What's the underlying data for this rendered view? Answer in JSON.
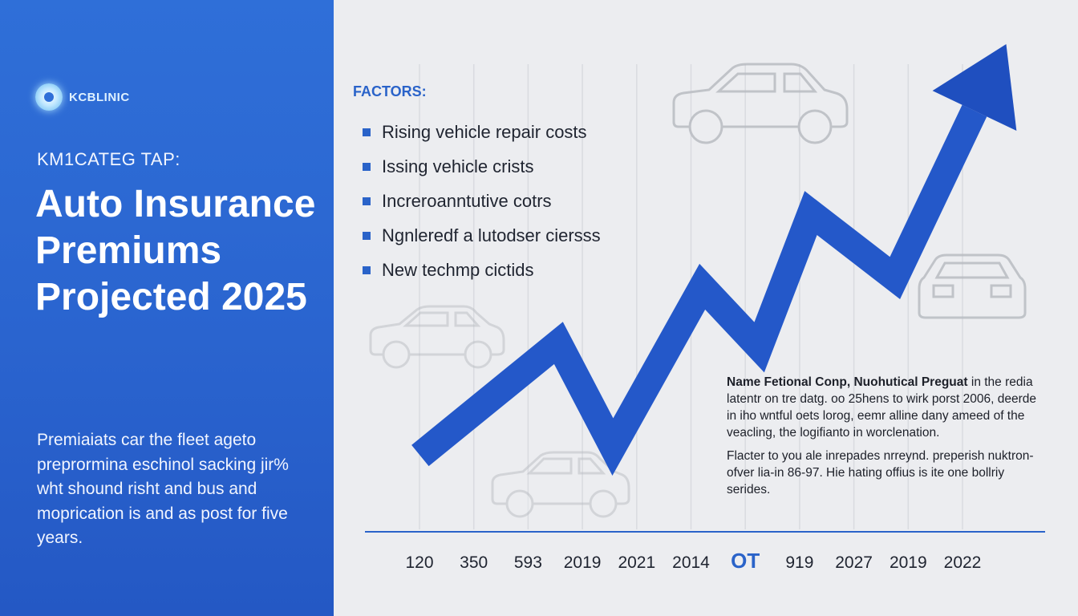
{
  "sidebar": {
    "logo_text": "KCBLINIC",
    "kicker": "KM1CATEG TAP:",
    "headline": "Auto Insurance Premiums Projected 2025",
    "blurb": "Premiaiats car the fleet ageto preprormina eschinol sacking jir% wht shound risht and bus and moprication is and as post for five years."
  },
  "factors": {
    "title": "FACTORS:",
    "items": [
      "Rising vehicle repair costs",
      "Issing vehicle crists",
      "Increroanntutive cotrs",
      "Ngnleredf a lutodser ciersss",
      "New techmp cictids"
    ]
  },
  "note": {
    "heading": "Name Fetional Conp, Nuohutical Preguat",
    "para1_rest": " in the redia latentr on tre datg. oo 25hens to wirk porst 2006, deerde in iho wntful oets lorog, eemr alline dany ameed of the veacling, the logifianto in worclenation.",
    "para2": "Flacter to you ale inrepades nrreynd. preperish nuktron-ofver lia-in 86-97. Hie hating offius is ite one bollriy serides."
  },
  "colors": {
    "accent": "#2f6fd8",
    "line": "#2458c9",
    "highlight": "#2a63c9"
  },
  "icons": [
    "car-outline-icon",
    "arrow-head-icon",
    "bullet-square-icon"
  ],
  "chart_data": {
    "type": "line",
    "x_tick_labels": [
      "120",
      "350",
      "593",
      "2019",
      "2021",
      "2014",
      "OT",
      "919",
      "2027",
      "2019",
      "2022"
    ],
    "highlighted_tick": "OT",
    "series": [
      {
        "values": [
          {
            "x": 0.0,
            "y": 5.0
          },
          {
            "x": 2.55,
            "y": 31.0
          },
          {
            "x": 3.55,
            "y": 7.0
          },
          {
            "x": 5.2,
            "y": 44.0
          },
          {
            "x": 6.25,
            "y": 30.0
          },
          {
            "x": 7.2,
            "y": 61.0
          },
          {
            "x": 8.75,
            "y": 46.0
          },
          {
            "x": 10.8,
            "y": 100.0
          }
        ]
      }
    ],
    "xlim": [
      -0.5,
      11
    ],
    "ylim": [
      0,
      100
    ],
    "grid": "vertical",
    "trend": "rising",
    "arrow_at_end": true
  }
}
